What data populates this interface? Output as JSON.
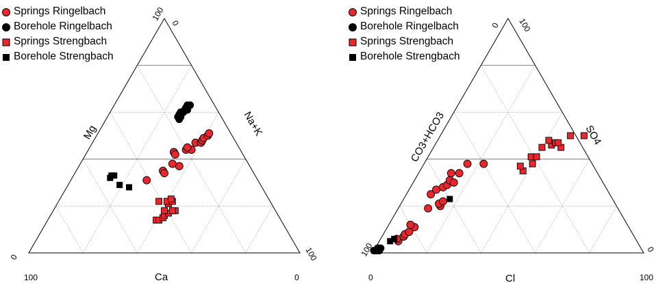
{
  "legend": {
    "entries": [
      {
        "label": "Springs Ringelbach",
        "marker": "circle",
        "color": "#e8262b"
      },
      {
        "label": "Borehole Ringelbach",
        "marker": "circle",
        "color": "#000000"
      },
      {
        "label": "Springs Strengbach",
        "marker": "square",
        "color": "#e8262b"
      },
      {
        "label": "Borehole Strengbach",
        "marker": "square",
        "color": "#000000"
      }
    ]
  },
  "colors": {
    "spring": "#e8262b",
    "borehole": "#000000",
    "outline": "#000000",
    "grid": "#9a9a9a"
  },
  "chart_data": [
    {
      "type": "scatter",
      "plot": "ternary",
      "title": "",
      "vertex_labels": {
        "top": "Mg",
        "left": "Ca",
        "right": "Na+K"
      },
      "axis_labels": {
        "left": "Mg",
        "right": "Na+K",
        "bottom": "Ca"
      },
      "tick_labels": {
        "top_a": "100",
        "top_b": "0",
        "bottom_left_a": "0",
        "bottom_left_b": "100",
        "bottom_right_a": "0",
        "bottom_right_b": "100"
      },
      "grid": true,
      "legend_position": "top-left",
      "series": [
        {
          "name": "Springs Ringelbach",
          "marker": "circle",
          "color": "#e8262b",
          "points": [
            [
              31,
              28
            ],
            [
              35,
              32
            ],
            [
              34,
              33
            ],
            [
              37,
              37
            ],
            [
              38,
              34
            ],
            [
              43,
              32
            ],
            [
              42,
              33
            ],
            [
              44,
              36
            ],
            [
              44,
              38
            ],
            [
              45,
              36
            ],
            [
              47,
              38
            ],
            [
              47,
              40
            ],
            [
              48,
              40
            ],
            [
              49,
              40
            ],
            [
              50,
              41
            ],
            [
              51,
              41
            ]
          ]
        },
        {
          "name": "Borehole Ringelbach",
          "marker": "circle",
          "color": "#000000",
          "points": [
            [
              57,
              27
            ],
            [
              58,
              27
            ],
            [
              58,
              26
            ],
            [
              59,
              26
            ],
            [
              60,
              26
            ],
            [
              60,
              27
            ],
            [
              61,
              27
            ],
            [
              61,
              28
            ],
            [
              62,
              27
            ],
            [
              63,
              27
            ],
            [
              63,
              28
            ]
          ]
        },
        {
          "name": "Springs Strengbach",
          "marker": "square",
          "color": "#e8262b",
          "points": [
            [
              18,
              45
            ],
            [
              14,
              40
            ],
            [
              14,
              41
            ],
            [
              15,
              42
            ],
            [
              16,
              42
            ],
            [
              17,
              43
            ],
            [
              18,
              44
            ],
            [
              18,
              41
            ],
            [
              21,
              41
            ],
            [
              22,
              40
            ],
            [
              22,
              42
            ],
            [
              23,
              41
            ],
            [
              22,
              37
            ]
          ]
        },
        {
          "name": "Borehole Strengbach",
          "marker": "square",
          "color": "#000000",
          "points": [
            [
              33,
              14
            ],
            [
              32,
              14
            ],
            [
              33,
              15
            ],
            [
              29,
              19
            ],
            [
              28,
              23
            ]
          ]
        }
      ]
    },
    {
      "type": "scatter",
      "plot": "ternary",
      "title": "",
      "vertex_labels": {
        "top": "SO4",
        "left": "CO3+HCO3",
        "right": "Cl"
      },
      "axis_labels": {
        "left": "CO3+HCO3",
        "right": "SO4",
        "bottom": "Cl"
      },
      "tick_labels": {
        "top_a": "0",
        "top_b": "100",
        "bottom_left_a": "100",
        "bottom_left_b": "0",
        "bottom_right_a": "0",
        "bottom_right_b": "100"
      },
      "grid": true,
      "legend_position": "top-left",
      "series": [
        {
          "name": "Springs Ringelbach",
          "marker": "circle",
          "color": "#e8262b",
          "points": [
            [
              5,
              7
            ],
            [
              6,
              6
            ],
            [
              7,
              8
            ],
            [
              8,
              8
            ],
            [
              9,
              9
            ],
            [
              11,
              10
            ],
            [
              12,
              8
            ],
            [
              19,
              11
            ],
            [
              20,
              15
            ],
            [
              21,
              14
            ],
            [
              22,
              15
            ],
            [
              25,
              9
            ],
            [
              27,
              10
            ],
            [
              28,
              12
            ],
            [
              29,
              13
            ],
            [
              31,
              13
            ],
            [
              30,
              15
            ],
            [
              34,
              12
            ],
            [
              34,
              15
            ],
            [
              38,
              16
            ],
            [
              38,
              22
            ]
          ]
        },
        {
          "name": "Borehole Ringelbach",
          "marker": "circle",
          "color": "#000000",
          "points": [
            [
              1,
              0
            ],
            [
              1,
              1
            ],
            [
              2,
              1
            ],
            [
              1,
              2
            ],
            [
              2,
              2
            ]
          ]
        },
        {
          "name": "Springs Strengbach",
          "marker": "square",
          "color": "#e8262b",
          "points": [
            [
              35,
              38
            ],
            [
              37,
              36
            ],
            [
              38,
              40
            ],
            [
              41,
              38
            ],
            [
              41,
              40
            ],
            [
              45,
              40
            ],
            [
              46,
              43
            ],
            [
              47,
              44
            ],
            [
              48,
              41
            ],
            [
              45,
              47
            ],
            [
              47,
              45
            ],
            [
              50,
              48
            ],
            [
              50,
              53
            ]
          ]
        },
        {
          "name": "Borehole Strengbach",
          "marker": "square",
          "color": "#000000",
          "points": [
            [
              6,
              5
            ],
            [
              5,
              4
            ],
            [
              2,
              1
            ],
            [
              1,
              1
            ],
            [
              23,
              17
            ]
          ]
        }
      ]
    }
  ]
}
